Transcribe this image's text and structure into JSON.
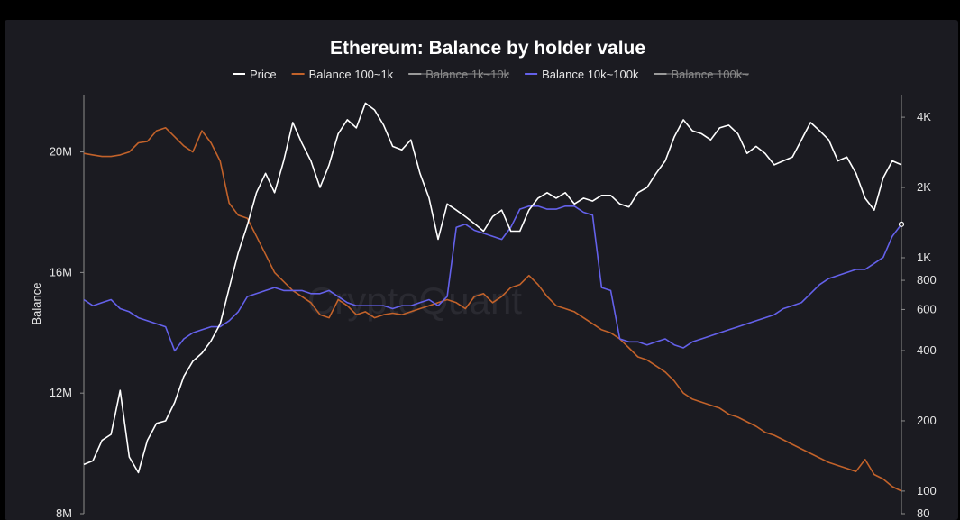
{
  "chart_data": {
    "type": "line",
    "title": "Ethereum: Balance by holder value",
    "ylabel": "Balance",
    "ylabel_right": "",
    "watermark": "CryptoQuant",
    "legend_position": "top-center",
    "left_axis": {
      "ticks": [
        "8M",
        "12M",
        "16M",
        "20M"
      ],
      "values": [
        8000000,
        12000000,
        16000000,
        20000000
      ],
      "range": [
        8000000,
        21900000
      ]
    },
    "right_axis": {
      "scale": "log",
      "ticks": [
        "80",
        "100",
        "200",
        "400",
        "600",
        "800",
        "1K",
        "2K",
        "4K"
      ],
      "values": [
        80,
        100,
        200,
        400,
        600,
        800,
        1000,
        2000,
        4000
      ],
      "range": [
        80,
        5000
      ]
    },
    "series": [
      {
        "name": "Price",
        "color": "#ffffff",
        "axis": "right",
        "visible": true,
        "values": [
          130,
          135,
          165,
          175,
          270,
          140,
          120,
          165,
          195,
          200,
          240,
          310,
          360,
          390,
          440,
          520,
          740,
          1050,
          1380,
          1900,
          2300,
          1900,
          2600,
          3800,
          3100,
          2600,
          2000,
          2500,
          3400,
          3900,
          3600,
          4600,
          4300,
          3700,
          3000,
          2900,
          3200,
          2300,
          1800,
          1200,
          1700,
          1600,
          1500,
          1400,
          1300,
          1500,
          1600,
          1300,
          1300,
          1600,
          1800,
          1900,
          1800,
          1900,
          1700,
          1800,
          1750,
          1850,
          1850,
          1700,
          1650,
          1900,
          2000,
          2300,
          2600,
          3300,
          3900,
          3500,
          3400,
          3200,
          3600,
          3700,
          3400,
          2800,
          3000,
          2800,
          2500,
          2600,
          2700,
          3200,
          3800,
          3500,
          3200,
          2600,
          2700,
          2300,
          1800,
          1600,
          2200,
          2600,
          2500
        ]
      },
      {
        "name": "Balance 100~1k",
        "color": "#c2622a",
        "axis": "left",
        "visible": true,
        "values": [
          19950000,
          19900000,
          19850000,
          19850000,
          19900000,
          20000000,
          20300000,
          20350000,
          20700000,
          20800000,
          20500000,
          20200000,
          20000000,
          20700000,
          20300000,
          19700000,
          18300000,
          17900000,
          17800000,
          17200000,
          16600000,
          16000000,
          15700000,
          15400000,
          15200000,
          15000000,
          14600000,
          14500000,
          15100000,
          14900000,
          14600000,
          14700000,
          14500000,
          14600000,
          14650000,
          14600000,
          14700000,
          14800000,
          14900000,
          15000000,
          15100000,
          15000000,
          14800000,
          15200000,
          15300000,
          15000000,
          15200000,
          15500000,
          15600000,
          15900000,
          15600000,
          15200000,
          14900000,
          14800000,
          14700000,
          14500000,
          14300000,
          14100000,
          14000000,
          13800000,
          13500000,
          13200000,
          13100000,
          12900000,
          12700000,
          12400000,
          12000000,
          11800000,
          11700000,
          11600000,
          11500000,
          11300000,
          11200000,
          11050000,
          10900000,
          10700000,
          10600000,
          10450000,
          10300000,
          10150000,
          10000000,
          9850000,
          9700000,
          9600000,
          9500000,
          9400000,
          9800000,
          9300000,
          9150000,
          8900000,
          8750000
        ]
      },
      {
        "name": "Balance 1k~10k",
        "color": "#aaaaaa",
        "axis": "left",
        "visible": false,
        "values": []
      },
      {
        "name": "Balance 10k~100k",
        "color": "#6461ea",
        "axis": "left",
        "visible": true,
        "values": [
          15100000,
          14900000,
          15000000,
          15100000,
          14800000,
          14700000,
          14500000,
          14400000,
          14300000,
          14200000,
          13400000,
          13800000,
          14000000,
          14100000,
          14200000,
          14200000,
          14400000,
          14700000,
          15200000,
          15300000,
          15400000,
          15500000,
          15400000,
          15400000,
          15400000,
          15300000,
          15300000,
          15400000,
          15200000,
          15000000,
          14900000,
          14900000,
          14900000,
          14900000,
          14800000,
          14900000,
          14900000,
          15000000,
          15100000,
          14900000,
          15200000,
          17500000,
          17600000,
          17400000,
          17300000,
          17200000,
          17100000,
          17500000,
          18100000,
          18200000,
          18200000,
          18100000,
          18100000,
          18200000,
          18200000,
          18000000,
          17900000,
          15500000,
          15400000,
          13800000,
          13700000,
          13700000,
          13600000,
          13700000,
          13800000,
          13600000,
          13500000,
          13700000,
          13800000,
          13900000,
          14000000,
          14100000,
          14200000,
          14300000,
          14400000,
          14500000,
          14600000,
          14800000,
          14900000,
          15000000,
          15300000,
          15600000,
          15800000,
          15900000,
          16000000,
          16100000,
          16100000,
          16300000,
          16500000,
          17200000,
          17600000
        ]
      },
      {
        "name": "Balance 100k~",
        "color": "#aaaaaa",
        "axis": "left",
        "visible": false,
        "values": []
      }
    ]
  }
}
